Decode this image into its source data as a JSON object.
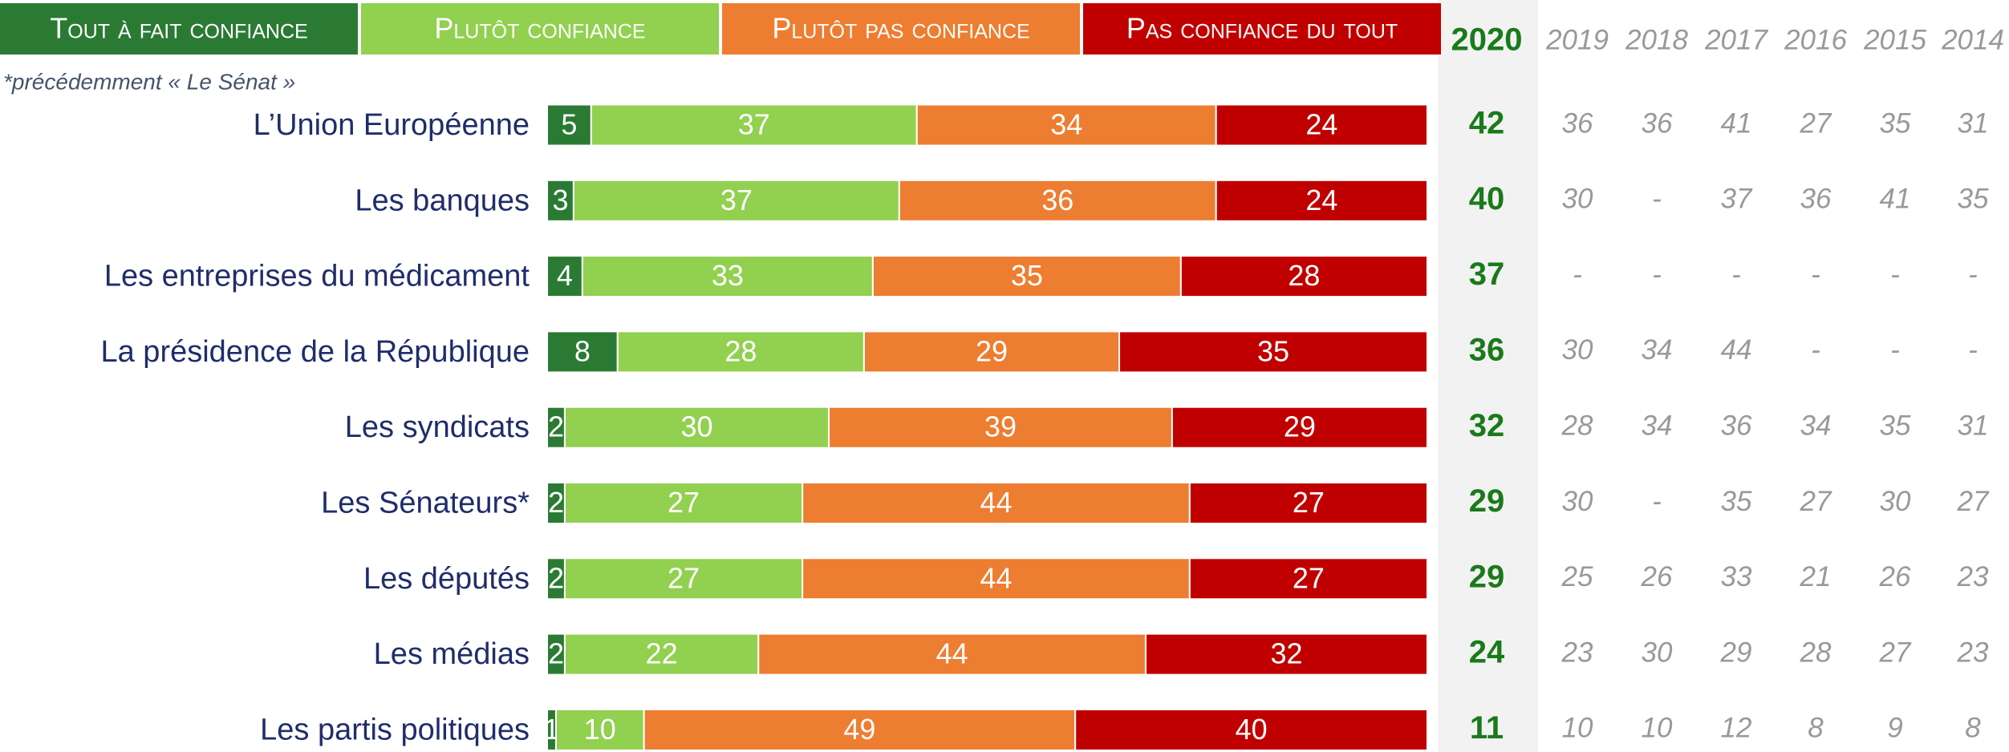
{
  "chart_data": {
    "type": "bar",
    "orientation": "horizontal",
    "stacked": true,
    "note": "*précédemment « Le Sénat »",
    "categories": [
      "L’Union Européenne",
      "Les banques",
      "Les entreprises du médicament",
      "La présidence de la République",
      "Les syndicats",
      "Les Sénateurs*",
      "Les députés",
      "Les médias",
      "Les partis politiques"
    ],
    "series": [
      {
        "name": "Tout à fait confiance",
        "color": "#2b7a34",
        "values": [
          5,
          3,
          4,
          8,
          2,
          2,
          2,
          2,
          1
        ]
      },
      {
        "name": "Plutôt confiance",
        "color": "#92d050",
        "values": [
          37,
          37,
          33,
          28,
          30,
          27,
          27,
          22,
          10
        ]
      },
      {
        "name": "Plutôt pas confiance",
        "color": "#ed7d31",
        "values": [
          34,
          36,
          35,
          29,
          39,
          44,
          44,
          44,
          49
        ]
      },
      {
        "name": "Pas confiance du tout",
        "color": "#c00000",
        "values": [
          24,
          24,
          28,
          35,
          29,
          27,
          27,
          32,
          40
        ]
      }
    ],
    "xlim": [
      0,
      100
    ],
    "table": {
      "columns": [
        2020,
        2019,
        2018,
        2017,
        2016,
        2015,
        2014
      ],
      "rows": [
        [
          42,
          36,
          36,
          41,
          27,
          35,
          31
        ],
        [
          40,
          30,
          "-",
          37,
          36,
          41,
          35
        ],
        [
          37,
          "-",
          "-",
          "-",
          "-",
          "-",
          "-"
        ],
        [
          36,
          30,
          34,
          44,
          "-",
          "-",
          "-"
        ],
        [
          32,
          28,
          34,
          36,
          34,
          35,
          31
        ],
        [
          29,
          30,
          "-",
          35,
          27,
          30,
          27
        ],
        [
          29,
          25,
          26,
          33,
          21,
          26,
          23
        ],
        [
          24,
          23,
          30,
          29,
          28,
          27,
          23
        ],
        [
          11,
          10,
          10,
          12,
          8,
          9,
          8
        ]
      ]
    }
  }
}
